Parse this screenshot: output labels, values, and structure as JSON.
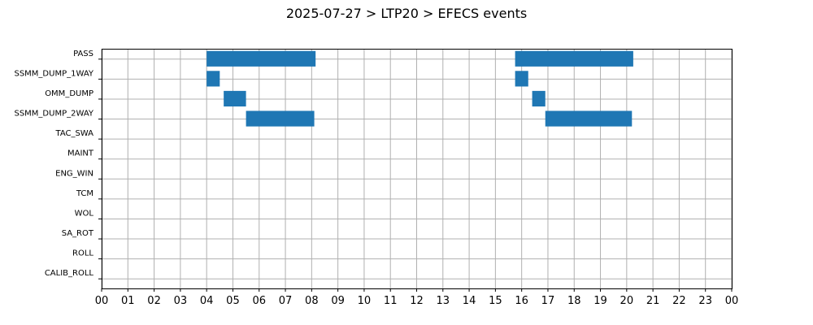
{
  "chart_data": {
    "type": "bar",
    "orientation": "horizontal-timeline",
    "title": "2025-07-27 > LTP20 > EFECS events",
    "xlabel": "",
    "ylabel": "",
    "grid": true,
    "xlim": [
      0,
      24
    ],
    "x_ticks": [
      "00",
      "01",
      "02",
      "03",
      "04",
      "05",
      "06",
      "07",
      "08",
      "09",
      "10",
      "11",
      "12",
      "13",
      "14",
      "15",
      "16",
      "17",
      "18",
      "19",
      "20",
      "21",
      "22",
      "23",
      "00"
    ],
    "categories": [
      "PASS",
      "SSMM_DUMP_1WAY",
      "OMM_DUMP",
      "SSMM_DUMP_2WAY",
      "TAC_SWA",
      "MAINT",
      "ENG_WIN",
      "TCM",
      "WOL",
      "SA_ROT",
      "ROLL",
      "CALIB_ROLL"
    ],
    "bar_color": "#1f77b4",
    "events": [
      {
        "category": "PASS",
        "start": 4.0,
        "end": 8.15
      },
      {
        "category": "PASS",
        "start": 15.75,
        "end": 20.25
      },
      {
        "category": "SSMM_DUMP_1WAY",
        "start": 4.0,
        "end": 4.5
      },
      {
        "category": "SSMM_DUMP_1WAY",
        "start": 15.75,
        "end": 16.25
      },
      {
        "category": "OMM_DUMP",
        "start": 4.65,
        "end": 5.5
      },
      {
        "category": "OMM_DUMP",
        "start": 16.4,
        "end": 16.9
      },
      {
        "category": "SSMM_DUMP_2WAY",
        "start": 5.5,
        "end": 8.1
      },
      {
        "category": "SSMM_DUMP_2WAY",
        "start": 16.9,
        "end": 20.2
      }
    ]
  }
}
